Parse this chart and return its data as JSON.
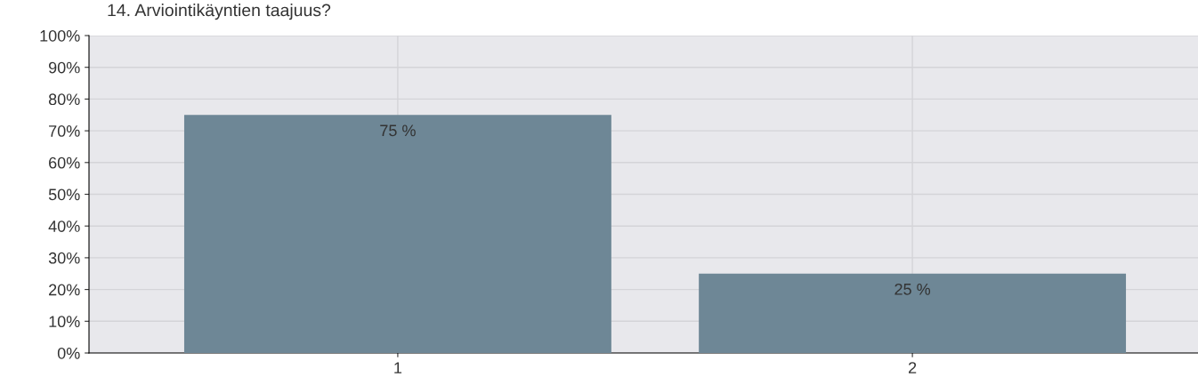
{
  "chart_data": {
    "type": "bar",
    "title": "14. Arviointikäyntien taajuus?",
    "categories": [
      "1",
      "2"
    ],
    "values": [
      75,
      25
    ],
    "value_labels": [
      "75 %",
      "25 %"
    ],
    "color": "#6e8796",
    "ylim": [
      0,
      100
    ],
    "yticks": [
      {
        "value": 0,
        "label": "0%"
      },
      {
        "value": 10,
        "label": "10%"
      },
      {
        "value": 20,
        "label": "20%"
      },
      {
        "value": 30,
        "label": "30%"
      },
      {
        "value": 40,
        "label": "40%"
      },
      {
        "value": 50,
        "label": "50%"
      },
      {
        "value": 60,
        "label": "60%"
      },
      {
        "value": 70,
        "label": "70%"
      },
      {
        "value": 80,
        "label": "80%"
      },
      {
        "value": 90,
        "label": "90%"
      },
      {
        "value": 100,
        "label": "100%"
      }
    ],
    "grid": true
  }
}
